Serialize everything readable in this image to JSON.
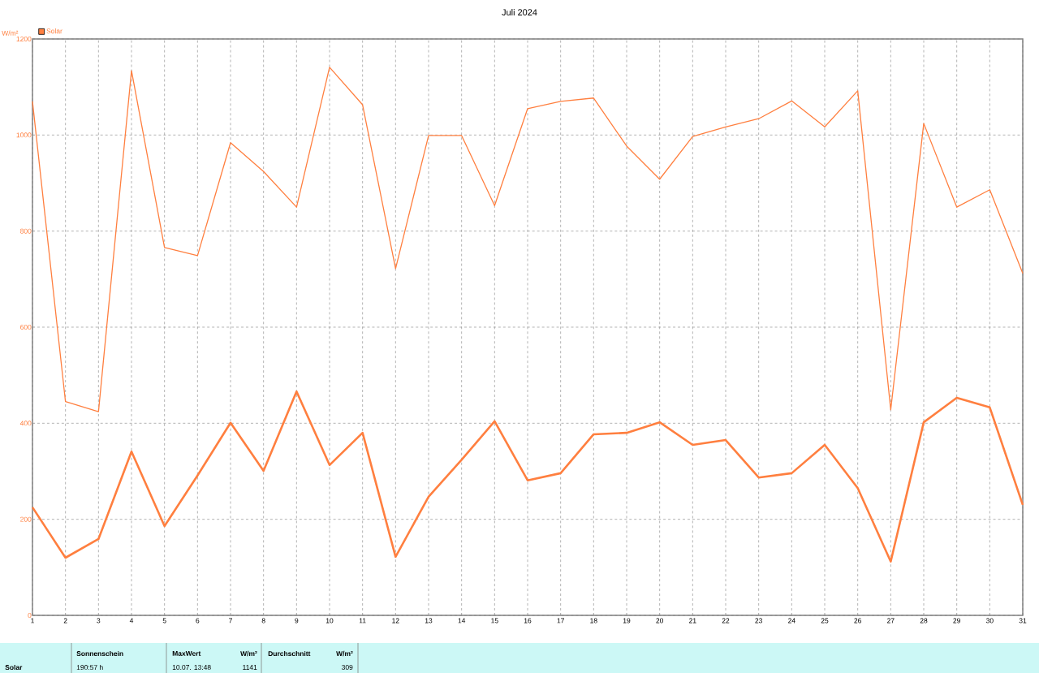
{
  "chart_data": {
    "type": "line",
    "title": "Juli 2024",
    "ylabel": "W/m²",
    "x": [
      1,
      2,
      3,
      4,
      5,
      6,
      7,
      8,
      9,
      10,
      11,
      12,
      13,
      14,
      15,
      16,
      17,
      18,
      19,
      20,
      21,
      22,
      23,
      24,
      25,
      26,
      27,
      28,
      29,
      30,
      31
    ],
    "series": [
      {
        "name": "Solar",
        "color": "#ff7f3f",
        "values": [
          1070,
          445,
          424,
          1134,
          766,
          749,
          984,
          924,
          850,
          1141,
          1063,
          722,
          999,
          999,
          853,
          1055,
          1070,
          1077,
          977,
          908,
          997,
          1017,
          1034,
          1071,
          1017,
          1092,
          428,
          1024,
          850,
          886,
          712
        ]
      },
      {
        "color": "#ff7f3f",
        "values": [
          225,
          120,
          159,
          341,
          186,
          291,
          401,
          301,
          466,
          313,
          380,
          122,
          247,
          324,
          404,
          281,
          296,
          377,
          380,
          402,
          355,
          365,
          287,
          296,
          355,
          265,
          112,
          402,
          453,
          433,
          230
        ]
      }
    ],
    "xlim": [
      1,
      31
    ],
    "xticks": [
      1,
      2,
      3,
      4,
      5,
      6,
      7,
      8,
      9,
      10,
      11,
      12,
      13,
      14,
      15,
      16,
      17,
      18,
      19,
      20,
      21,
      22,
      23,
      24,
      25,
      26,
      27,
      28,
      29,
      30,
      31
    ],
    "ylim": [
      0,
      1200
    ],
    "yticks": [
      0,
      200,
      400,
      600,
      800,
      1000,
      1200
    ],
    "grid": true,
    "legend": "top left",
    "annotations": [
      "Solar",
      "Sonnenschein",
      "190:57 h",
      "MaxWert",
      "W/m²",
      "10.07.  13:48",
      "1141",
      "Durchschnitt",
      "W/m²",
      "309"
    ]
  }
}
